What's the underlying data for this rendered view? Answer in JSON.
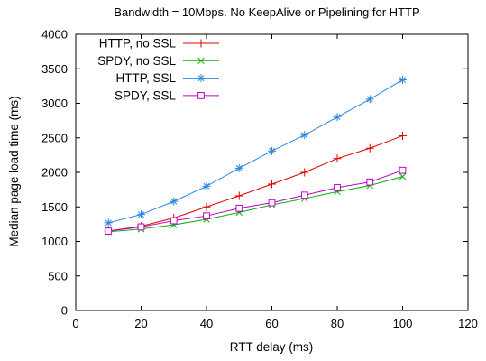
{
  "chart_data": {
    "type": "line",
    "title": "Bandwidth = 10Mbps. No KeepAlive or Pipelining for HTTP",
    "xlabel": "RTT delay (ms)",
    "ylabel": "Median page load time (ms)",
    "xlim": [
      0,
      120
    ],
    "ylim": [
      0,
      4000
    ],
    "x_ticks": [
      0,
      20,
      40,
      60,
      80,
      100,
      120
    ],
    "y_ticks": [
      0,
      500,
      1000,
      1500,
      2000,
      2500,
      3000,
      3500,
      4000
    ],
    "grid": false,
    "legend_position": "top-left",
    "x": [
      10,
      20,
      30,
      40,
      50,
      60,
      70,
      80,
      90,
      100
    ],
    "series": [
      {
        "name": "HTTP, no SSL",
        "color": "#e00000",
        "marker": "plus",
        "values": [
          1150,
          1220,
          1340,
          1500,
          1660,
          1830,
          2000,
          2200,
          2350,
          2530
        ]
      },
      {
        "name": "SPDY, no SSL",
        "color": "#00b000",
        "marker": "cross",
        "values": [
          1140,
          1180,
          1240,
          1320,
          1420,
          1530,
          1620,
          1720,
          1810,
          1940
        ]
      },
      {
        "name": "HTTP, SSL",
        "color": "#2a88e0",
        "marker": "star",
        "values": [
          1270,
          1390,
          1580,
          1800,
          2060,
          2310,
          2540,
          2800,
          3060,
          3340
        ]
      },
      {
        "name": "SPDY, SSL",
        "color": "#c000c0",
        "marker": "square",
        "values": [
          1150,
          1210,
          1300,
          1370,
          1480,
          1560,
          1670,
          1780,
          1860,
          2030
        ]
      }
    ]
  }
}
